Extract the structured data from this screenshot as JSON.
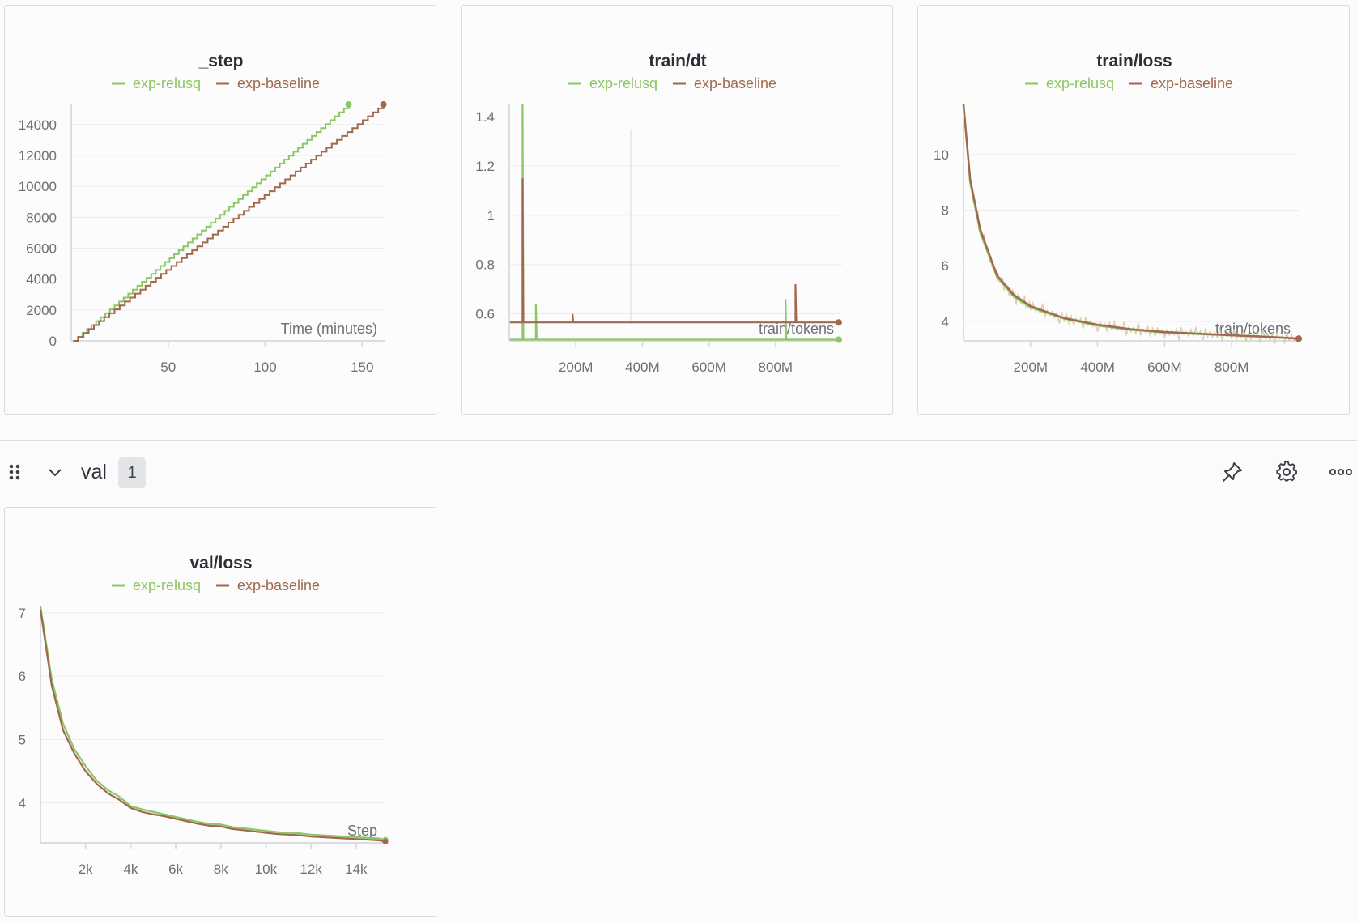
{
  "legend": [
    {
      "name": "exp-relusq",
      "color": "#8cc665"
    },
    {
      "name": "exp-baseline",
      "color": "#a0684e"
    }
  ],
  "section": {
    "title": "val",
    "count": "1",
    "icons": [
      "drag-handle-icon",
      "chevron-down-icon",
      "pin-icon",
      "gear-icon",
      "more-horizontal-icon"
    ]
  },
  "charts": {
    "step": {
      "type": "line",
      "title": "_step",
      "xlabel": "Time (minutes)",
      "xlim": [
        0,
        162
      ],
      "ylim": [
        0,
        15300
      ],
      "xticks": [
        {
          "v": 50,
          "label": "50"
        },
        {
          "v": 100,
          "label": "100"
        },
        {
          "v": 150,
          "label": "150"
        }
      ],
      "yticks": [
        {
          "v": 0,
          "label": "0"
        },
        {
          "v": 2000,
          "label": "2000"
        },
        {
          "v": 4000,
          "label": "4000"
        },
        {
          "v": 6000,
          "label": "6000"
        },
        {
          "v": 8000,
          "label": "8000"
        },
        {
          "v": 10000,
          "label": "10000"
        },
        {
          "v": 12000,
          "label": "12000"
        },
        {
          "v": 14000,
          "label": "14000"
        }
      ],
      "series": [
        {
          "name": "exp-relusq",
          "x": [
            1,
            143
          ],
          "y": [
            0,
            15300
          ]
        },
        {
          "name": "exp-baseline",
          "x": [
            1,
            161
          ],
          "y": [
            0,
            15300
          ]
        }
      ]
    },
    "dt": {
      "type": "line",
      "title": "train/dt",
      "xlabel": "train/tokens",
      "xlim": [
        0,
        1000000000
      ],
      "ylim": [
        0.49,
        1.45
      ],
      "xticks": [
        {
          "v": 200000000,
          "label": "200M"
        },
        {
          "v": 400000000,
          "label": "400M"
        },
        {
          "v": 600000000,
          "label": "600M"
        },
        {
          "v": 800000000,
          "label": "800M"
        }
      ],
      "yticks": [
        {
          "v": 0.6,
          "label": "0.6"
        },
        {
          "v": 0.8,
          "label": "0.8"
        },
        {
          "v": 1.0,
          "label": "1"
        },
        {
          "v": 1.2,
          "label": "1.2"
        },
        {
          "v": 1.4,
          "label": "1.4"
        }
      ],
      "series": [
        {
          "name": "exp-relusq",
          "baseline": 0.495,
          "spikes": [
            [
              40000000,
              1.45
            ],
            [
              80000000,
              0.64
            ],
            [
              830000000,
              0.66
            ]
          ]
        },
        {
          "name": "exp-baseline",
          "baseline": 0.565,
          "spikes": [
            [
              40000000,
              1.15
            ],
            [
              190000000,
              0.6
            ],
            [
              860000000,
              0.72
            ]
          ]
        }
      ]
    },
    "trainloss": {
      "type": "line",
      "title": "train/loss",
      "xlabel": "train/tokens",
      "xlim": [
        0,
        1000000000
      ],
      "ylim": [
        3.3,
        11.8
      ],
      "xticks": [
        {
          "v": 200000000,
          "label": "200M"
        },
        {
          "v": 400000000,
          "label": "400M"
        },
        {
          "v": 600000000,
          "label": "600M"
        },
        {
          "v": 800000000,
          "label": "800M"
        }
      ],
      "yticks": [
        {
          "v": 4,
          "label": "4"
        },
        {
          "v": 6,
          "label": "6"
        },
        {
          "v": 8,
          "label": "8"
        },
        {
          "v": 10,
          "label": "10"
        }
      ],
      "series": [
        {
          "name": "exp-relusq",
          "x": [
            0,
            20000000,
            50000000,
            100000000,
            150000000,
            200000000,
            300000000,
            400000000,
            500000000,
            600000000,
            700000000,
            800000000,
            900000000,
            1000000000
          ],
          "y": [
            11.8,
            9.0,
            7.2,
            5.6,
            4.9,
            4.5,
            4.1,
            3.85,
            3.7,
            3.6,
            3.55,
            3.5,
            3.45,
            3.38
          ]
        },
        {
          "name": "exp-baseline",
          "x": [
            0,
            20000000,
            50000000,
            100000000,
            150000000,
            200000000,
            300000000,
            400000000,
            500000000,
            600000000,
            700000000,
            800000000,
            900000000,
            1000000000
          ],
          "y": [
            11.8,
            9.1,
            7.3,
            5.65,
            4.95,
            4.55,
            4.12,
            3.88,
            3.72,
            3.62,
            3.56,
            3.5,
            3.45,
            3.38
          ]
        }
      ]
    },
    "valloss": {
      "type": "line",
      "title": "val/loss",
      "xlabel": "Step",
      "xlim": [
        0,
        15300
      ],
      "ylim": [
        3.37,
        7.1
      ],
      "xticks": [
        {
          "v": 2000,
          "label": "2k"
        },
        {
          "v": 4000,
          "label": "4k"
        },
        {
          "v": 6000,
          "label": "6k"
        },
        {
          "v": 8000,
          "label": "8k"
        },
        {
          "v": 10000,
          "label": "10k"
        },
        {
          "v": 12000,
          "label": "12k"
        },
        {
          "v": 14000,
          "label": "14k"
        }
      ],
      "yticks": [
        {
          "v": 4,
          "label": "4"
        },
        {
          "v": 5,
          "label": "5"
        },
        {
          "v": 6,
          "label": "6"
        },
        {
          "v": 7,
          "label": "7"
        }
      ],
      "series": [
        {
          "name": "exp-relusq",
          "x": [
            0,
            500,
            1000,
            1500,
            2000,
            2500,
            3000,
            3500,
            4000,
            4500,
            5000,
            5500,
            6000,
            6500,
            7000,
            7500,
            8000,
            8500,
            9000,
            9500,
            10000,
            10500,
            11000,
            11500,
            12000,
            12500,
            13000,
            13500,
            14000,
            14500,
            15000,
            15300
          ],
          "y": [
            7.1,
            5.95,
            5.25,
            4.85,
            4.58,
            4.35,
            4.2,
            4.1,
            3.95,
            3.9,
            3.86,
            3.82,
            3.78,
            3.74,
            3.7,
            3.67,
            3.66,
            3.62,
            3.6,
            3.58,
            3.56,
            3.54,
            3.53,
            3.52,
            3.5,
            3.49,
            3.48,
            3.47,
            3.46,
            3.45,
            3.44,
            3.42
          ]
        },
        {
          "name": "exp-baseline",
          "x": [
            0,
            500,
            1000,
            1500,
            2000,
            2500,
            3000,
            3500,
            4000,
            4500,
            5000,
            5500,
            6000,
            6500,
            7000,
            7500,
            8000,
            8500,
            9000,
            9500,
            10000,
            10500,
            11000,
            11500,
            12000,
            12500,
            13000,
            13500,
            14000,
            14500,
            15000,
            15300
          ],
          "y": [
            7.05,
            5.85,
            5.15,
            4.78,
            4.5,
            4.3,
            4.15,
            4.05,
            3.92,
            3.86,
            3.82,
            3.79,
            3.75,
            3.71,
            3.67,
            3.64,
            3.63,
            3.59,
            3.57,
            3.55,
            3.53,
            3.51,
            3.5,
            3.49,
            3.47,
            3.46,
            3.45,
            3.44,
            3.43,
            3.42,
            3.41,
            3.39
          ]
        }
      ]
    }
  }
}
